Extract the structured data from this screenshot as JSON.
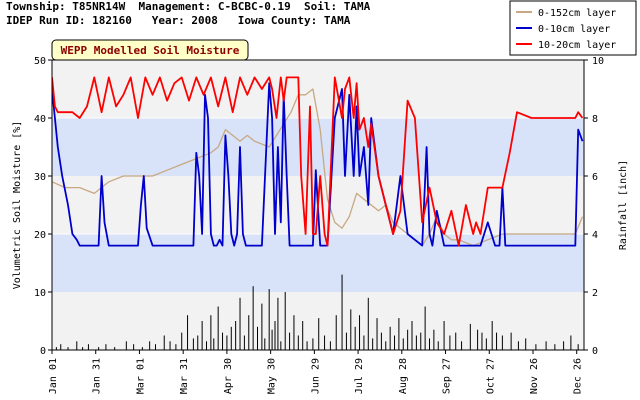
{
  "header": {
    "line1": "Township: T85NR14W  Management: C-BCBC-0.19  Soil: TAMA",
    "line2": "IDEP Run ID: 182160   Year: 2008   Iowa County: TAMA"
  },
  "chart_data": {
    "type": "line",
    "title": "WEPP Modelled Soil Moisture",
    "ylabel": "Volumetric Soil Moisture [%]",
    "y2label": "Rainfall [inch]",
    "ylim": [
      0,
      50
    ],
    "y2lim": [
      0,
      10
    ],
    "yticks": [
      "0",
      "10",
      "20",
      "30",
      "40",
      "50"
    ],
    "y2ticks": [
      "0",
      "2",
      "4",
      "6",
      "8",
      "10"
    ],
    "x_tick_labels": [
      "Jan 01",
      "Jan 31",
      "Mar 01",
      "Mar 31",
      "Apr 30",
      "May 30",
      "Jun 29",
      "Jul 29",
      "Aug 28",
      "Sep 27",
      "Oct 27",
      "Nov 26",
      "Dec 26"
    ],
    "x_tick_days": [
      1,
      31,
      61,
      91,
      121,
      151,
      181,
      211,
      241,
      271,
      301,
      331,
      361
    ],
    "xlim": [
      1,
      366
    ],
    "shaded_bands": [
      [
        10,
        20
      ],
      [
        30,
        40
      ]
    ],
    "legend_position": "top-right",
    "series": [
      {
        "name": "0-152cm layer",
        "color": "#c8a882",
        "x": [
          1,
          10,
          20,
          30,
          40,
          50,
          60,
          70,
          80,
          90,
          100,
          110,
          115,
          120,
          125,
          130,
          135,
          140,
          150,
          155,
          160,
          165,
          170,
          175,
          180,
          185,
          190,
          195,
          200,
          205,
          210,
          215,
          220,
          225,
          230,
          235,
          240,
          250,
          255,
          260,
          265,
          270,
          275,
          280,
          290,
          300,
          310,
          320,
          330,
          340,
          350,
          360,
          365
        ],
        "values": [
          29,
          28,
          28,
          27,
          29,
          30,
          30,
          30,
          31,
          32,
          33,
          34,
          35,
          38,
          37,
          36,
          37,
          36,
          35,
          37,
          39,
          41,
          44,
          44,
          45,
          38,
          26,
          22,
          21,
          23,
          27,
          26,
          25,
          24,
          25,
          22,
          21,
          19,
          18,
          20,
          23,
          20,
          19,
          19,
          18,
          19,
          20,
          20,
          20,
          20,
          20,
          20,
          23
        ]
      },
      {
        "name": "0-10cm layer",
        "color": "#0000cc",
        "x": [
          1,
          3,
          5,
          8,
          12,
          15,
          18,
          20,
          25,
          30,
          33,
          35,
          37,
          40,
          45,
          50,
          55,
          60,
          62,
          64,
          66,
          70,
          80,
          90,
          95,
          98,
          100,
          102,
          104,
          106,
          108,
          110,
          112,
          114,
          116,
          118,
          120,
          122,
          124,
          126,
          128,
          130,
          132,
          134,
          136,
          140,
          145,
          150,
          152,
          154,
          156,
          158,
          160,
          162,
          164,
          166,
          170,
          175,
          180,
          182,
          185,
          188,
          190,
          195,
          200,
          202,
          205,
          208,
          210,
          212,
          215,
          218,
          220,
          225,
          230,
          235,
          240,
          245,
          250,
          255,
          258,
          260,
          262,
          265,
          270,
          275,
          280,
          285,
          290,
          295,
          300,
          305,
          308,
          310,
          312,
          315,
          320,
          330,
          340,
          350,
          355,
          358,
          360,
          362,
          365
        ],
        "values": [
          45,
          40,
          35,
          30,
          25,
          20,
          19,
          18,
          18,
          18,
          18,
          30,
          22,
          18,
          18,
          18,
          18,
          18,
          25,
          30,
          21,
          18,
          18,
          18,
          18,
          18,
          34,
          30,
          20,
          44,
          40,
          20,
          18,
          18,
          19,
          18,
          37,
          30,
          20,
          18,
          20,
          35,
          20,
          18,
          18,
          18,
          18,
          46,
          40,
          20,
          35,
          22,
          44,
          30,
          18,
          18,
          18,
          18,
          18,
          31,
          18,
          18,
          18,
          40,
          45,
          30,
          44,
          30,
          42,
          30,
          35,
          25,
          40,
          30,
          25,
          20,
          30,
          20,
          19,
          18,
          35,
          20,
          18,
          24,
          18,
          18,
          18,
          18,
          18,
          18,
          22,
          18,
          18,
          28,
          18,
          18,
          18,
          18,
          18,
          18,
          18,
          18,
          18,
          38,
          36
        ]
      },
      {
        "name": "10-20cm layer",
        "color": "#ff0000",
        "x": [
          1,
          3,
          5,
          10,
          15,
          20,
          25,
          30,
          35,
          40,
          45,
          50,
          55,
          60,
          65,
          70,
          75,
          80,
          85,
          90,
          95,
          100,
          105,
          110,
          115,
          120,
          125,
          130,
          135,
          140,
          145,
          150,
          152,
          155,
          158,
          160,
          162,
          165,
          170,
          172,
          175,
          178,
          180,
          182,
          185,
          188,
          190,
          195,
          200,
          202,
          205,
          208,
          210,
          212,
          215,
          218,
          220,
          225,
          230,
          235,
          240,
          245,
          250,
          255,
          260,
          265,
          270,
          275,
          280,
          285,
          290,
          292,
          295,
          300,
          305,
          310,
          315,
          320,
          330,
          340,
          350,
          355,
          360,
          362,
          365
        ],
        "values": [
          47,
          42,
          41,
          41,
          41,
          40,
          42,
          47,
          41,
          47,
          42,
          44,
          47,
          40,
          47,
          44,
          47,
          43,
          46,
          47,
          43,
          47,
          44,
          47,
          42,
          47,
          41,
          47,
          44,
          47,
          45,
          47,
          45,
          40,
          47,
          43,
          47,
          47,
          47,
          30,
          20,
          42,
          20,
          20,
          30,
          20,
          18,
          47,
          40,
          45,
          47,
          40,
          46,
          38,
          40,
          35,
          39,
          30,
          25,
          20,
          24,
          43,
          40,
          22,
          28,
          22,
          20,
          24,
          18,
          25,
          20,
          22,
          20,
          28,
          28,
          28,
          34,
          41,
          40,
          40,
          40,
          40,
          40,
          41,
          40
        ]
      }
    ],
    "rainfall": {
      "name": "Rainfall",
      "color": "#000000",
      "x": [
        4,
        7,
        12,
        18,
        22,
        26,
        33,
        38,
        44,
        52,
        57,
        63,
        68,
        72,
        78,
        82,
        86,
        90,
        94,
        98,
        101,
        104,
        107,
        110,
        112,
        115,
        118,
        121,
        124,
        127,
        130,
        133,
        136,
        139,
        142,
        145,
        147,
        150,
        152,
        154,
        156,
        158,
        161,
        164,
        167,
        170,
        173,
        176,
        180,
        184,
        188,
        192,
        196,
        200,
        203,
        206,
        209,
        212,
        215,
        218,
        221,
        224,
        227,
        230,
        233,
        236,
        239,
        242,
        245,
        248,
        251,
        254,
        257,
        260,
        263,
        266,
        270,
        274,
        278,
        282,
        288,
        293,
        296,
        299,
        303,
        306,
        310,
        316,
        321,
        326,
        333,
        340,
        346,
        352,
        357,
        362
      ],
      "values": [
        0.1,
        0.2,
        0.1,
        0.3,
        0.1,
        0.2,
        0.1,
        0.2,
        0.1,
        0.3,
        0.2,
        0.1,
        0.3,
        0.2,
        0.5,
        0.3,
        0.2,
        0.6,
        1.2,
        0.4,
        0.5,
        1.0,
        0.3,
        1.2,
        0.4,
        1.5,
        0.6,
        0.5,
        0.8,
        1.0,
        1.8,
        0.5,
        1.2,
        2.2,
        0.8,
        1.6,
        0.4,
        2.1,
        0.7,
        1.0,
        1.8,
        0.3,
        2.0,
        0.6,
        1.2,
        0.5,
        1.0,
        0.3,
        0.4,
        1.1,
        0.5,
        0.3,
        1.2,
        2.6,
        0.6,
        1.4,
        0.8,
        1.2,
        0.5,
        1.8,
        0.4,
        1.1,
        0.6,
        0.3,
        0.8,
        0.5,
        1.1,
        0.4,
        0.7,
        1.0,
        0.5,
        0.6,
        1.5,
        0.4,
        0.7,
        0.3,
        1.0,
        0.5,
        0.6,
        0.3,
        0.9,
        0.7,
        0.6,
        0.4,
        1.0,
        0.6,
        0.5,
        0.6,
        0.3,
        0.4,
        0.2,
        0.3,
        0.2,
        0.3,
        0.5,
        0.2
      ]
    }
  }
}
